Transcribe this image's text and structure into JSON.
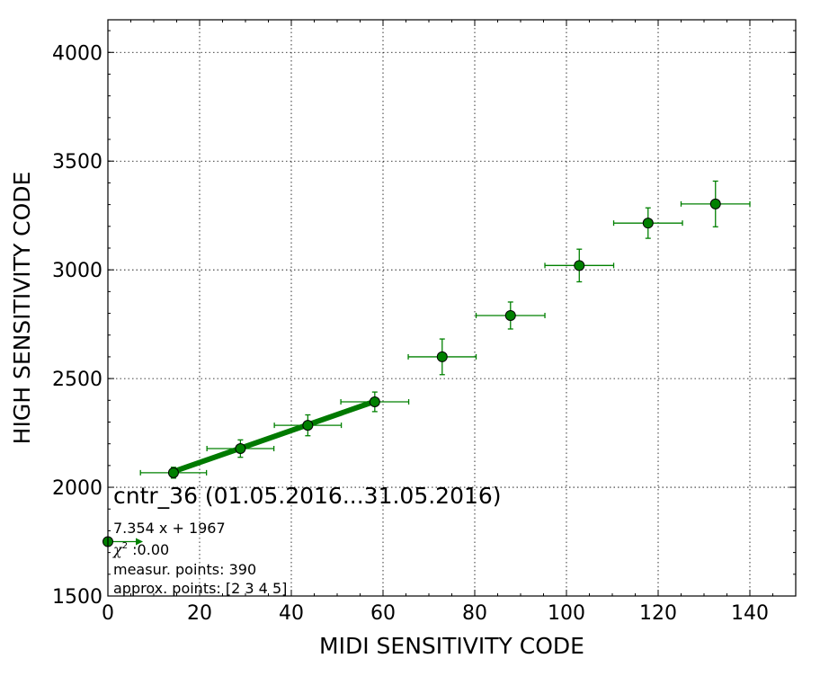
{
  "chart_data": {
    "type": "scatter",
    "xlabel": "MIDI SENSITIVITY CODE",
    "ylabel": "HIGH SENSITIVITY CODE",
    "xlim": [
      0,
      150
    ],
    "ylim": [
      1500,
      4150
    ],
    "x_ticks": [
      0,
      20,
      40,
      60,
      80,
      100,
      120,
      140
    ],
    "y_ticks": [
      1500,
      2000,
      2500,
      3000,
      3500,
      4000
    ],
    "grid": true,
    "colors": {
      "series": "#008000",
      "edge": "#000000",
      "fit": "#007a00"
    },
    "series": [
      {
        "points": [
          {
            "x": 14.3,
            "y": 2067,
            "xerr": 7.2,
            "yerr": 25
          },
          {
            "x": 28.9,
            "y": 2178,
            "xerr": 7.3,
            "yerr": 40
          },
          {
            "x": 43.6,
            "y": 2285,
            "xerr": 7.3,
            "yerr": 48
          },
          {
            "x": 58.2,
            "y": 2393,
            "xerr": 7.4,
            "yerr": 45
          },
          {
            "x": 72.9,
            "y": 2600,
            "xerr": 7.4,
            "yerr": 82
          },
          {
            "x": 87.8,
            "y": 2790,
            "xerr": 7.5,
            "yerr": 62
          },
          {
            "x": 102.8,
            "y": 3020,
            "xerr": 7.5,
            "yerr": 75
          },
          {
            "x": 117.8,
            "y": 3215,
            "xerr": 7.5,
            "yerr": 70
          },
          {
            "x": 132.5,
            "y": 3303,
            "xerr": 7.5,
            "yerr": 105
          }
        ]
      }
    ],
    "fit": {
      "slope": 7.354,
      "intercept": 1967,
      "x_range": [
        14.3,
        58.2
      ]
    },
    "annotation": {
      "title": "cntr_36 (01.05.2016...31.05.2016)",
      "equation": "7.354 x + 1967",
      "chi2_symbol": "χ",
      "chi2_sup": "2",
      "chi2_value": " :0.00",
      "measur_points": "measur. points: 390",
      "approx_points": "approx. points: [2 3 4 5]"
    },
    "legend_marker": {
      "x": 0,
      "y": 1750
    }
  }
}
